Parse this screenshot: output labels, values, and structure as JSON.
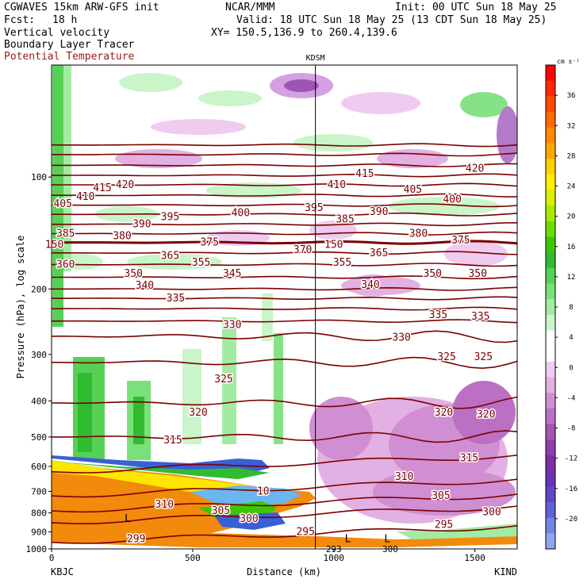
{
  "header": {
    "model": "CGWAVES 15km ARW-GFS init",
    "fcst_label": "Fcst:",
    "fcst_value": "18 h",
    "org": "NCAR/MMM",
    "init": "Init: 00 UTC Sun 18 May 25",
    "valid": "Valid: 18 UTC Sun 18 May 25 (13 CDT Sun 18 May 25)",
    "field1": "Vertical velocity",
    "field2": "Boundary Layer Tracer",
    "field3": "Potential Temperature",
    "xy": "XY= 150.5,136.9 to 260.4,139.6"
  },
  "colors": {
    "contour": "#7a0000",
    "contour_label_bg": "#ffffff",
    "tracer_orange": "#f28a0c",
    "frame": "#000000"
  },
  "chart_data": {
    "type": "heatmap",
    "title": "",
    "xlabel": "Distance (km)",
    "ylabel": "Pressure (hPa), log scale",
    "x_range": [
      0,
      1650
    ],
    "x_ticks": [
      0,
      500,
      1000,
      1500
    ],
    "y_range": [
      1000,
      50
    ],
    "y_log": true,
    "y_ticks": [
      100,
      200,
      300,
      400,
      500,
      600,
      700,
      800,
      900,
      1000
    ],
    "left_station": "KBJC",
    "right_station": "KIND",
    "marker_station": "KDSM",
    "marker_x": 935,
    "colorbar": {
      "unit": "cm s⁻¹",
      "ticks": [
        36,
        32,
        28,
        24,
        20,
        16,
        12,
        8,
        4,
        0,
        -4,
        -8,
        -12,
        -16,
        -20
      ],
      "colors": [
        "#ff0000",
        "#ff2a00",
        "#ff4a00",
        "#ff6a00",
        "#ff8a00",
        "#ffa800",
        "#ffd000",
        "#fff000",
        "#d8f000",
        "#a8e800",
        "#6ddc00",
        "#3cc800",
        "#31bb31",
        "#56d156",
        "#7ae07a",
        "#a3eba3",
        "#c9f5c9",
        "#ffffff",
        "#ffffff",
        "#f0cbf0",
        "#e2b0e2",
        "#cf8fd2",
        "#bc70c4",
        "#a653b4",
        "#8e3fab",
        "#7a30a3",
        "#6a33b3",
        "#5f46c4",
        "#5f62d6",
        "#7286e3",
        "#8ea6ee"
      ]
    },
    "theta_contours": [
      {
        "value": 420,
        "p": 82
      },
      {
        "value": 415,
        "p": 87
      },
      {
        "value": 410,
        "p": 93
      },
      {
        "value": 405,
        "p": 99
      },
      {
        "value": 400,
        "p": 105
      },
      {
        "value": 395,
        "p": 112
      },
      {
        "value": 390,
        "p": 119
      },
      {
        "value": 385,
        "p": 126
      },
      {
        "value": 380,
        "p": 134
      },
      {
        "value": 375,
        "p": 142
      },
      {
        "value": 370,
        "p": 150
      },
      {
        "value": 365,
        "p": 160
      },
      {
        "value": 360,
        "p": 172
      },
      {
        "value": 355,
        "p": 186
      },
      {
        "value": 350,
        "p": 200
      },
      {
        "value": 345,
        "p": 212
      },
      {
        "value": 340,
        "p": 226
      },
      {
        "value": 335,
        "p": 244
      },
      {
        "value": 330,
        "p": 268
      },
      {
        "value": 325,
        "p": 315
      },
      {
        "value": 320,
        "p": 405
      },
      {
        "value": 315,
        "p": 500
      },
      {
        "value": 310,
        "p": 620
      },
      {
        "value": 305,
        "p": 720
      },
      {
        "value": 300,
        "p": 790
      },
      {
        "value": 295,
        "p": 850
      },
      {
        "value": 299,
        "p": 960
      }
    ],
    "contour_labels": [
      {
        "text": "420",
        "x": 260,
        "p": 105
      },
      {
        "text": "415",
        "x": 180,
        "p": 107
      },
      {
        "text": "410",
        "x": 120,
        "p": 113
      },
      {
        "text": "405",
        "x": 40,
        "p": 118
      },
      {
        "text": "400",
        "x": 670,
        "p": 125
      },
      {
        "text": "395",
        "x": 420,
        "p": 128
      },
      {
        "text": "390",
        "x": 320,
        "p": 134
      },
      {
        "text": "385",
        "x": 50,
        "p": 142
      },
      {
        "text": "380",
        "x": 250,
        "p": 144
      },
      {
        "text": "375",
        "x": 560,
        "p": 150
      },
      {
        "text": "370",
        "x": 890,
        "p": 157
      },
      {
        "text": "365",
        "x": 420,
        "p": 163
      },
      {
        "text": "360",
        "x": 50,
        "p": 172
      },
      {
        "text": "355",
        "x": 530,
        "p": 170
      },
      {
        "text": "350",
        "x": 290,
        "p": 182
      },
      {
        "text": "345",
        "x": 640,
        "p": 182
      },
      {
        "text": "340",
        "x": 330,
        "p": 196
      },
      {
        "text": "335",
        "x": 440,
        "p": 212
      },
      {
        "text": "330",
        "x": 640,
        "p": 250
      },
      {
        "text": "325",
        "x": 610,
        "p": 350
      },
      {
        "text": "320",
        "x": 520,
        "p": 430
      },
      {
        "text": "315",
        "x": 430,
        "p": 510
      },
      {
        "text": "310",
        "x": 400,
        "p": 760
      },
      {
        "text": "305",
        "x": 600,
        "p": 790
      },
      {
        "text": "300",
        "x": 700,
        "p": 830
      },
      {
        "text": "299",
        "x": 300,
        "p": 940
      },
      {
        "text": "295",
        "x": 900,
        "p": 900
      },
      {
        "text": "415",
        "x": 1110,
        "p": 98
      },
      {
        "text": "410",
        "x": 1010,
        "p": 105
      },
      {
        "text": "405",
        "x": 1280,
        "p": 108
      },
      {
        "text": "420",
        "x": 1500,
        "p": 95
      },
      {
        "text": "400",
        "x": 1420,
        "p": 115
      },
      {
        "text": "395",
        "x": 930,
        "p": 121
      },
      {
        "text": "385",
        "x": 1040,
        "p": 130
      },
      {
        "text": "390",
        "x": 1160,
        "p": 124
      },
      {
        "text": "380",
        "x": 1300,
        "p": 142
      },
      {
        "text": "375",
        "x": 1450,
        "p": 148
      },
      {
        "text": "365",
        "x": 1160,
        "p": 160
      },
      {
        "text": "355",
        "x": 1030,
        "p": 170
      },
      {
        "text": "350",
        "x": 1350,
        "p": 182
      },
      {
        "text": "350",
        "x": 1510,
        "p": 182
      },
      {
        "text": "340",
        "x": 1130,
        "p": 195
      },
      {
        "text": "335",
        "x": 1370,
        "p": 235
      },
      {
        "text": "335",
        "x": 1520,
        "p": 237
      },
      {
        "text": "330",
        "x": 1240,
        "p": 270
      },
      {
        "text": "325",
        "x": 1400,
        "p": 305
      },
      {
        "text": "325",
        "x": 1530,
        "p": 305
      },
      {
        "text": "320",
        "x": 1390,
        "p": 430
      },
      {
        "text": "320",
        "x": 1540,
        "p": 435
      },
      {
        "text": "315",
        "x": 1480,
        "p": 570
      },
      {
        "text": "310",
        "x": 1250,
        "p": 640
      },
      {
        "text": "305",
        "x": 1380,
        "p": 720
      },
      {
        "text": "300",
        "x": 1560,
        "p": 795
      },
      {
        "text": "295",
        "x": 1390,
        "p": 860
      },
      {
        "text": "10",
        "x": 750,
        "p": 700
      },
      {
        "text": "150",
        "x": 10,
        "p": 152
      },
      {
        "text": "150",
        "x": 1000,
        "p": 152
      }
    ],
    "low_labels": [
      {
        "text": "L",
        "x": 270,
        "p": 830
      },
      {
        "text": "L",
        "x": 1050,
        "p": 940
      },
      {
        "text": "L",
        "x": 1190,
        "p": 940
      }
    ],
    "low_values": [
      {
        "text": "293",
        "x": 1000,
        "p": 1000
      },
      {
        "text": "300",
        "x": 1200,
        "p": 1000
      }
    ]
  }
}
